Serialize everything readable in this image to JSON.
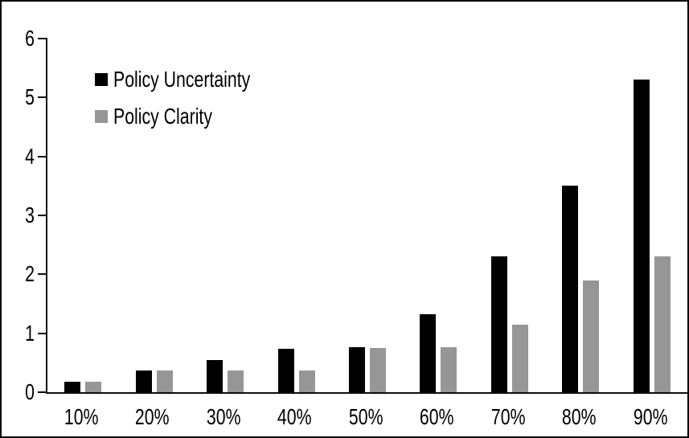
{
  "chart_data": {
    "type": "bar",
    "title": "",
    "xlabel": "",
    "ylabel": "",
    "categories": [
      "10%",
      "20%",
      "30%",
      "40%",
      "50%",
      "60%",
      "70%",
      "80%",
      "90%"
    ],
    "series": [
      {
        "name": "Policy Uncertainty",
        "color": "#000000",
        "values": [
          0.18,
          0.37,
          0.55,
          0.74,
          0.76,
          1.32,
          2.3,
          3.5,
          5.3
        ]
      },
      {
        "name": "Policy Clarity",
        "color": "#969696",
        "values": [
          0.18,
          0.37,
          0.37,
          0.37,
          0.75,
          0.76,
          1.15,
          1.9,
          2.3
        ]
      }
    ],
    "ylim": [
      0,
      6
    ],
    "yticks": [
      0,
      1,
      2,
      3,
      4,
      5,
      6
    ],
    "grid": false,
    "legend_position": "inside-top-left",
    "frame_border_color": "#000000",
    "background_color": "#ffffff"
  }
}
